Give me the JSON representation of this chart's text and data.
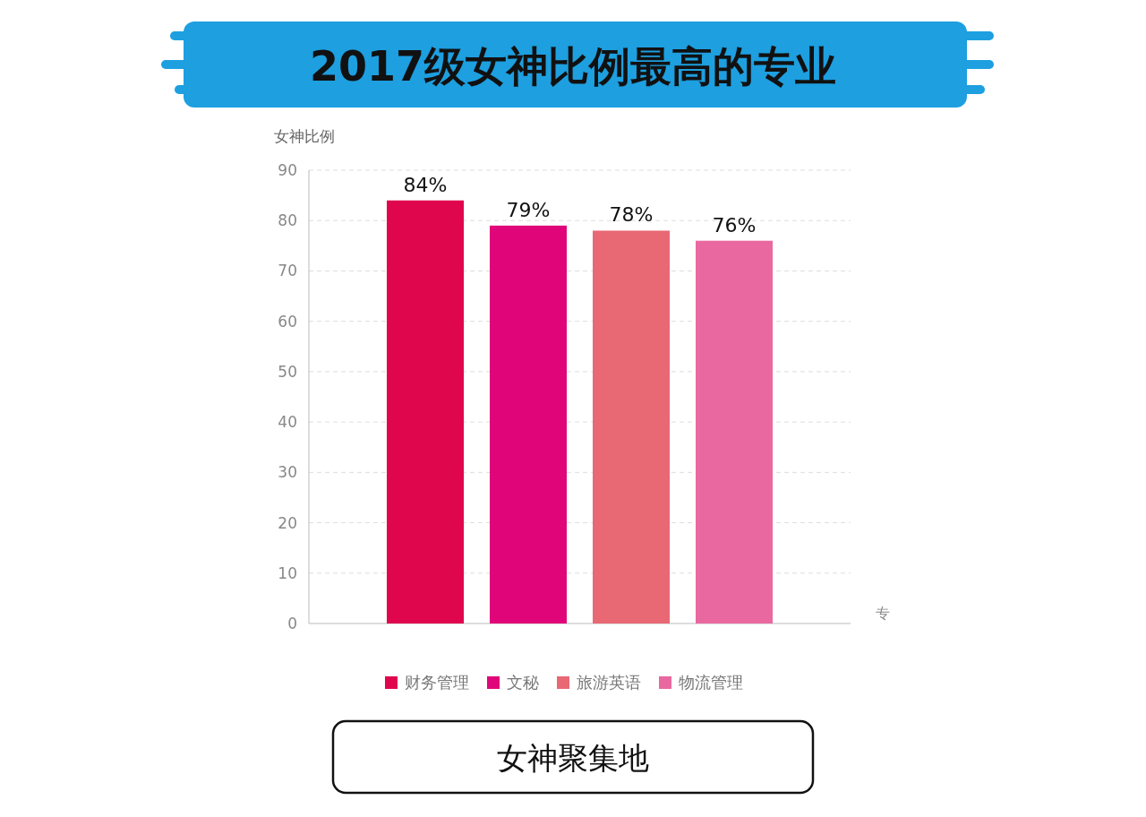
{
  "chart_data": {
    "type": "bar",
    "title": "2017级女神比例最高的专业",
    "ylabel": "女神比例",
    "xlabel": "专",
    "categories": [
      null
    ],
    "series": [
      {
        "name": "财务管理",
        "color": "#e0064e",
        "values": [
          84
        ],
        "value_labels": [
          "84%"
        ]
      },
      {
        "name": "文秘",
        "color": "#e0067a",
        "values": [
          79
        ],
        "value_labels": [
          "79%"
        ]
      },
      {
        "name": "旅游英语",
        "color": "#e86874",
        "values": [
          78
        ],
        "value_labels": [
          "78%"
        ]
      },
      {
        "name": "物流管理",
        "color": "#e968a0",
        "values": [
          76
        ],
        "value_labels": [
          "76%"
        ]
      }
    ],
    "ylim": [
      0,
      90
    ],
    "yticks": [
      0,
      10,
      20,
      30,
      40,
      50,
      60,
      70,
      80,
      90
    ],
    "grid": "y",
    "legend": "bottom",
    "annotations": [
      "女神聚集地"
    ]
  }
}
